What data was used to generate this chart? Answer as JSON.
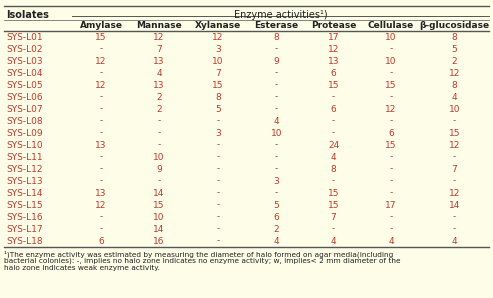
{
  "header1": "Enzyme activities¹)",
  "col_isolates": "Isolates",
  "columns": [
    "Amylase",
    "Mannase",
    "Xylanase",
    "Esterase",
    "Protease",
    "Cellulase",
    "β-glucosidase"
  ],
  "rows": [
    [
      "SYS-L01",
      "15",
      "12",
      "12",
      "8",
      "17",
      "10",
      "8"
    ],
    [
      "SYS-L02",
      "-",
      "7",
      "3",
      "-",
      "12",
      "-",
      "5"
    ],
    [
      "SYS-L03",
      "12",
      "13",
      "10",
      "9",
      "13",
      "10",
      "2"
    ],
    [
      "SYS-L04",
      "-",
      "4",
      "7",
      "-",
      "6",
      "-",
      "12"
    ],
    [
      "SYS-L05",
      "12",
      "13",
      "15",
      "-",
      "15",
      "15",
      "8"
    ],
    [
      "SYS-L06",
      "-",
      "2",
      "8",
      "-",
      "-",
      "-",
      "4"
    ],
    [
      "SYS-L07",
      "-",
      "2",
      "5",
      "-",
      "6",
      "12",
      "10"
    ],
    [
      "SYS-L08",
      "-",
      "-",
      "-",
      "4",
      "-",
      "-",
      "-"
    ],
    [
      "SYS-L09",
      "-",
      "-",
      "3",
      "10",
      "-",
      "6",
      "15"
    ],
    [
      "SYS-L10",
      "13",
      "-",
      "-",
      "-",
      "24",
      "15",
      "12"
    ],
    [
      "SYS-L11",
      "-",
      "10",
      "-",
      "-",
      "4",
      "-",
      "-"
    ],
    [
      "SYS-L12",
      "-",
      "9",
      "-",
      "-",
      "8",
      "-",
      "7"
    ],
    [
      "SYS-L13",
      "-",
      "-",
      "-",
      "3",
      "-",
      "-",
      "-"
    ],
    [
      "SYS-L14",
      "13",
      "14",
      "-",
      "-",
      "15",
      "-",
      "12"
    ],
    [
      "SYS-L15",
      "12",
      "15",
      "-",
      "5",
      "15",
      "17",
      "14"
    ],
    [
      "SYS-L16",
      "-",
      "10",
      "-",
      "6",
      "7",
      "-",
      "-"
    ],
    [
      "SYS-L17",
      "-",
      "14",
      "-",
      "2",
      "-",
      "-",
      "-"
    ],
    [
      "SYS-L18",
      "6",
      "16",
      "-",
      "4",
      "4",
      "4",
      "4"
    ]
  ],
  "footnote1": "¹)The enzyme activity was estimated by measuring the diameter of halo formed on agar media(including",
  "footnote2": "bacterial colonies): -, implies no halo zone indicates no enzyme activity; w, implies< 2 mm diameter of the",
  "footnote3": "halo zone indicates weak enzyme activity.",
  "bg_color": "#fdfde8",
  "text_color": "#c0392b",
  "header_color": "#222222",
  "line_color": "#555555"
}
